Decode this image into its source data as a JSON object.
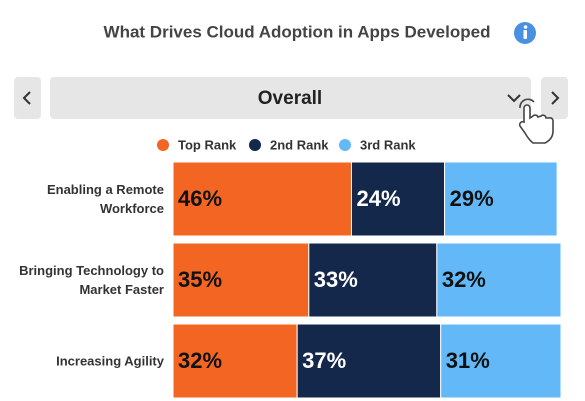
{
  "chart_data": {
    "type": "stacked-barh",
    "title": "What Drives Cloud Adoption in Apps Developed",
    "selector": "Overall",
    "categories": [
      "Enabling a Remote Workforce",
      "Bringing Technology to Market Faster",
      "Increasing Agility"
    ],
    "series": [
      {
        "name": "Top Rank",
        "color": "#f26522",
        "text_color": "#111111",
        "values": [
          46,
          35,
          32
        ],
        "value_labels": [
          "46%",
          "35%",
          "32%"
        ]
      },
      {
        "name": "2nd Rank",
        "color": "#13284b",
        "text_color": "#ffffff",
        "values": [
          24,
          33,
          37
        ],
        "value_labels": [
          "24%",
          "33%",
          "37%"
        ]
      },
      {
        "name": "3rd Rank",
        "color": "#63b8f7",
        "text_color": "#111111",
        "values": [
          29,
          32,
          31
        ],
        "value_labels": [
          "29%",
          "32%",
          "31%"
        ]
      }
    ],
    "xlim": [
      0,
      100
    ]
  }
}
